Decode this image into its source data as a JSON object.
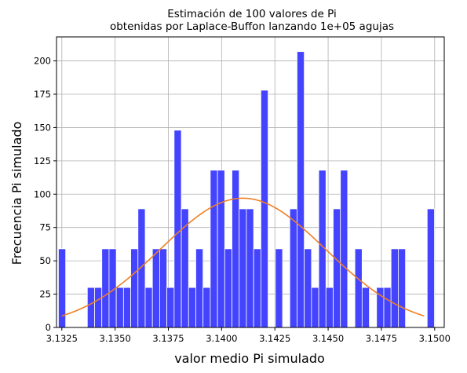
{
  "chart_data": {
    "type": "bar",
    "title_line1": "Estimación de 100 valores de Pi",
    "title_line2": "obtenidas por Laplace-Buffon lanzando 1e+05 agujas",
    "xlabel": "valor medio Pi simulado",
    "ylabel": "Frecuencia Pi simulado",
    "xlim": [
      3.13225,
      3.15045
    ],
    "ylim": [
      0,
      218
    ],
    "grid": true,
    "bar_color": "#4040ff",
    "curve_color": "#f07f24",
    "xticks": [
      3.1325,
      3.135,
      3.1375,
      3.14,
      3.1425,
      3.145,
      3.1475,
      3.15
    ],
    "xtick_labels": [
      "3.1325",
      "3.1350",
      "3.1375",
      "3.1400",
      "3.1425",
      "3.1450",
      "3.1475",
      "3.1500"
    ],
    "yticks": [
      0,
      25,
      50,
      75,
      100,
      125,
      150,
      175,
      200
    ],
    "ytick_labels": [
      "0",
      "25",
      "50",
      "75",
      "100",
      "125",
      "150",
      "175",
      "200"
    ],
    "bin_start": 3.13234,
    "bin_width": 0.0003394,
    "values": [
      59,
      0,
      0,
      0,
      30,
      30,
      59,
      59,
      30,
      30,
      59,
      89,
      30,
      59,
      59,
      30,
      148,
      89,
      30,
      59,
      30,
      118,
      118,
      59,
      118,
      89,
      89,
      59,
      178,
      0,
      59,
      0,
      89,
      207,
      59,
      30,
      118,
      30,
      89,
      118,
      0,
      59,
      30,
      0,
      30,
      30,
      59,
      59,
      0,
      0,
      0,
      89
    ],
    "fit_curve": {
      "mean": 3.141,
      "sd": 0.00387,
      "scale": 97,
      "x_from": 3.1325,
      "x_to": 3.1495
    }
  }
}
